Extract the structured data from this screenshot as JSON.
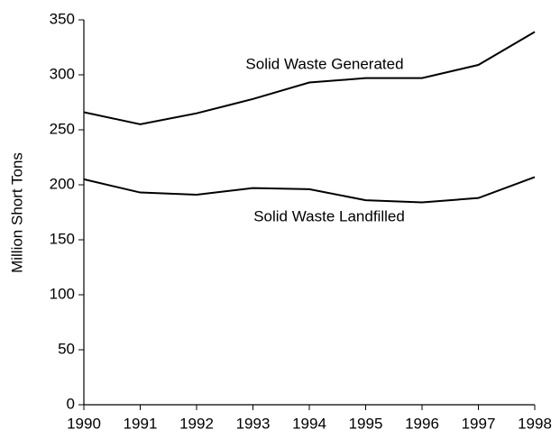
{
  "chart_data": {
    "type": "line",
    "ylabel": "Million Short Tons",
    "x": [
      1990,
      1991,
      1992,
      1993,
      1994,
      1995,
      1996,
      1997,
      1998
    ],
    "series": [
      {
        "name": "Solid Waste Generated",
        "color": "#000000",
        "values": [
          266,
          255,
          265,
          278,
          293,
          297,
          297,
          309,
          339
        ]
      },
      {
        "name": "Solid Waste Landfilled",
        "color": "#000000",
        "values": [
          205,
          193,
          191,
          197,
          196,
          186,
          184,
          188,
          207
        ]
      }
    ],
    "xlim": [
      1990,
      1998
    ],
    "xticks": [
      1990,
      1991,
      1992,
      1993,
      1994,
      1995,
      1996,
      1997,
      1998
    ],
    "ylim": [
      0,
      350
    ],
    "yticks": [
      0,
      50,
      100,
      150,
      200,
      250,
      300,
      350
    ],
    "grid": false
  }
}
